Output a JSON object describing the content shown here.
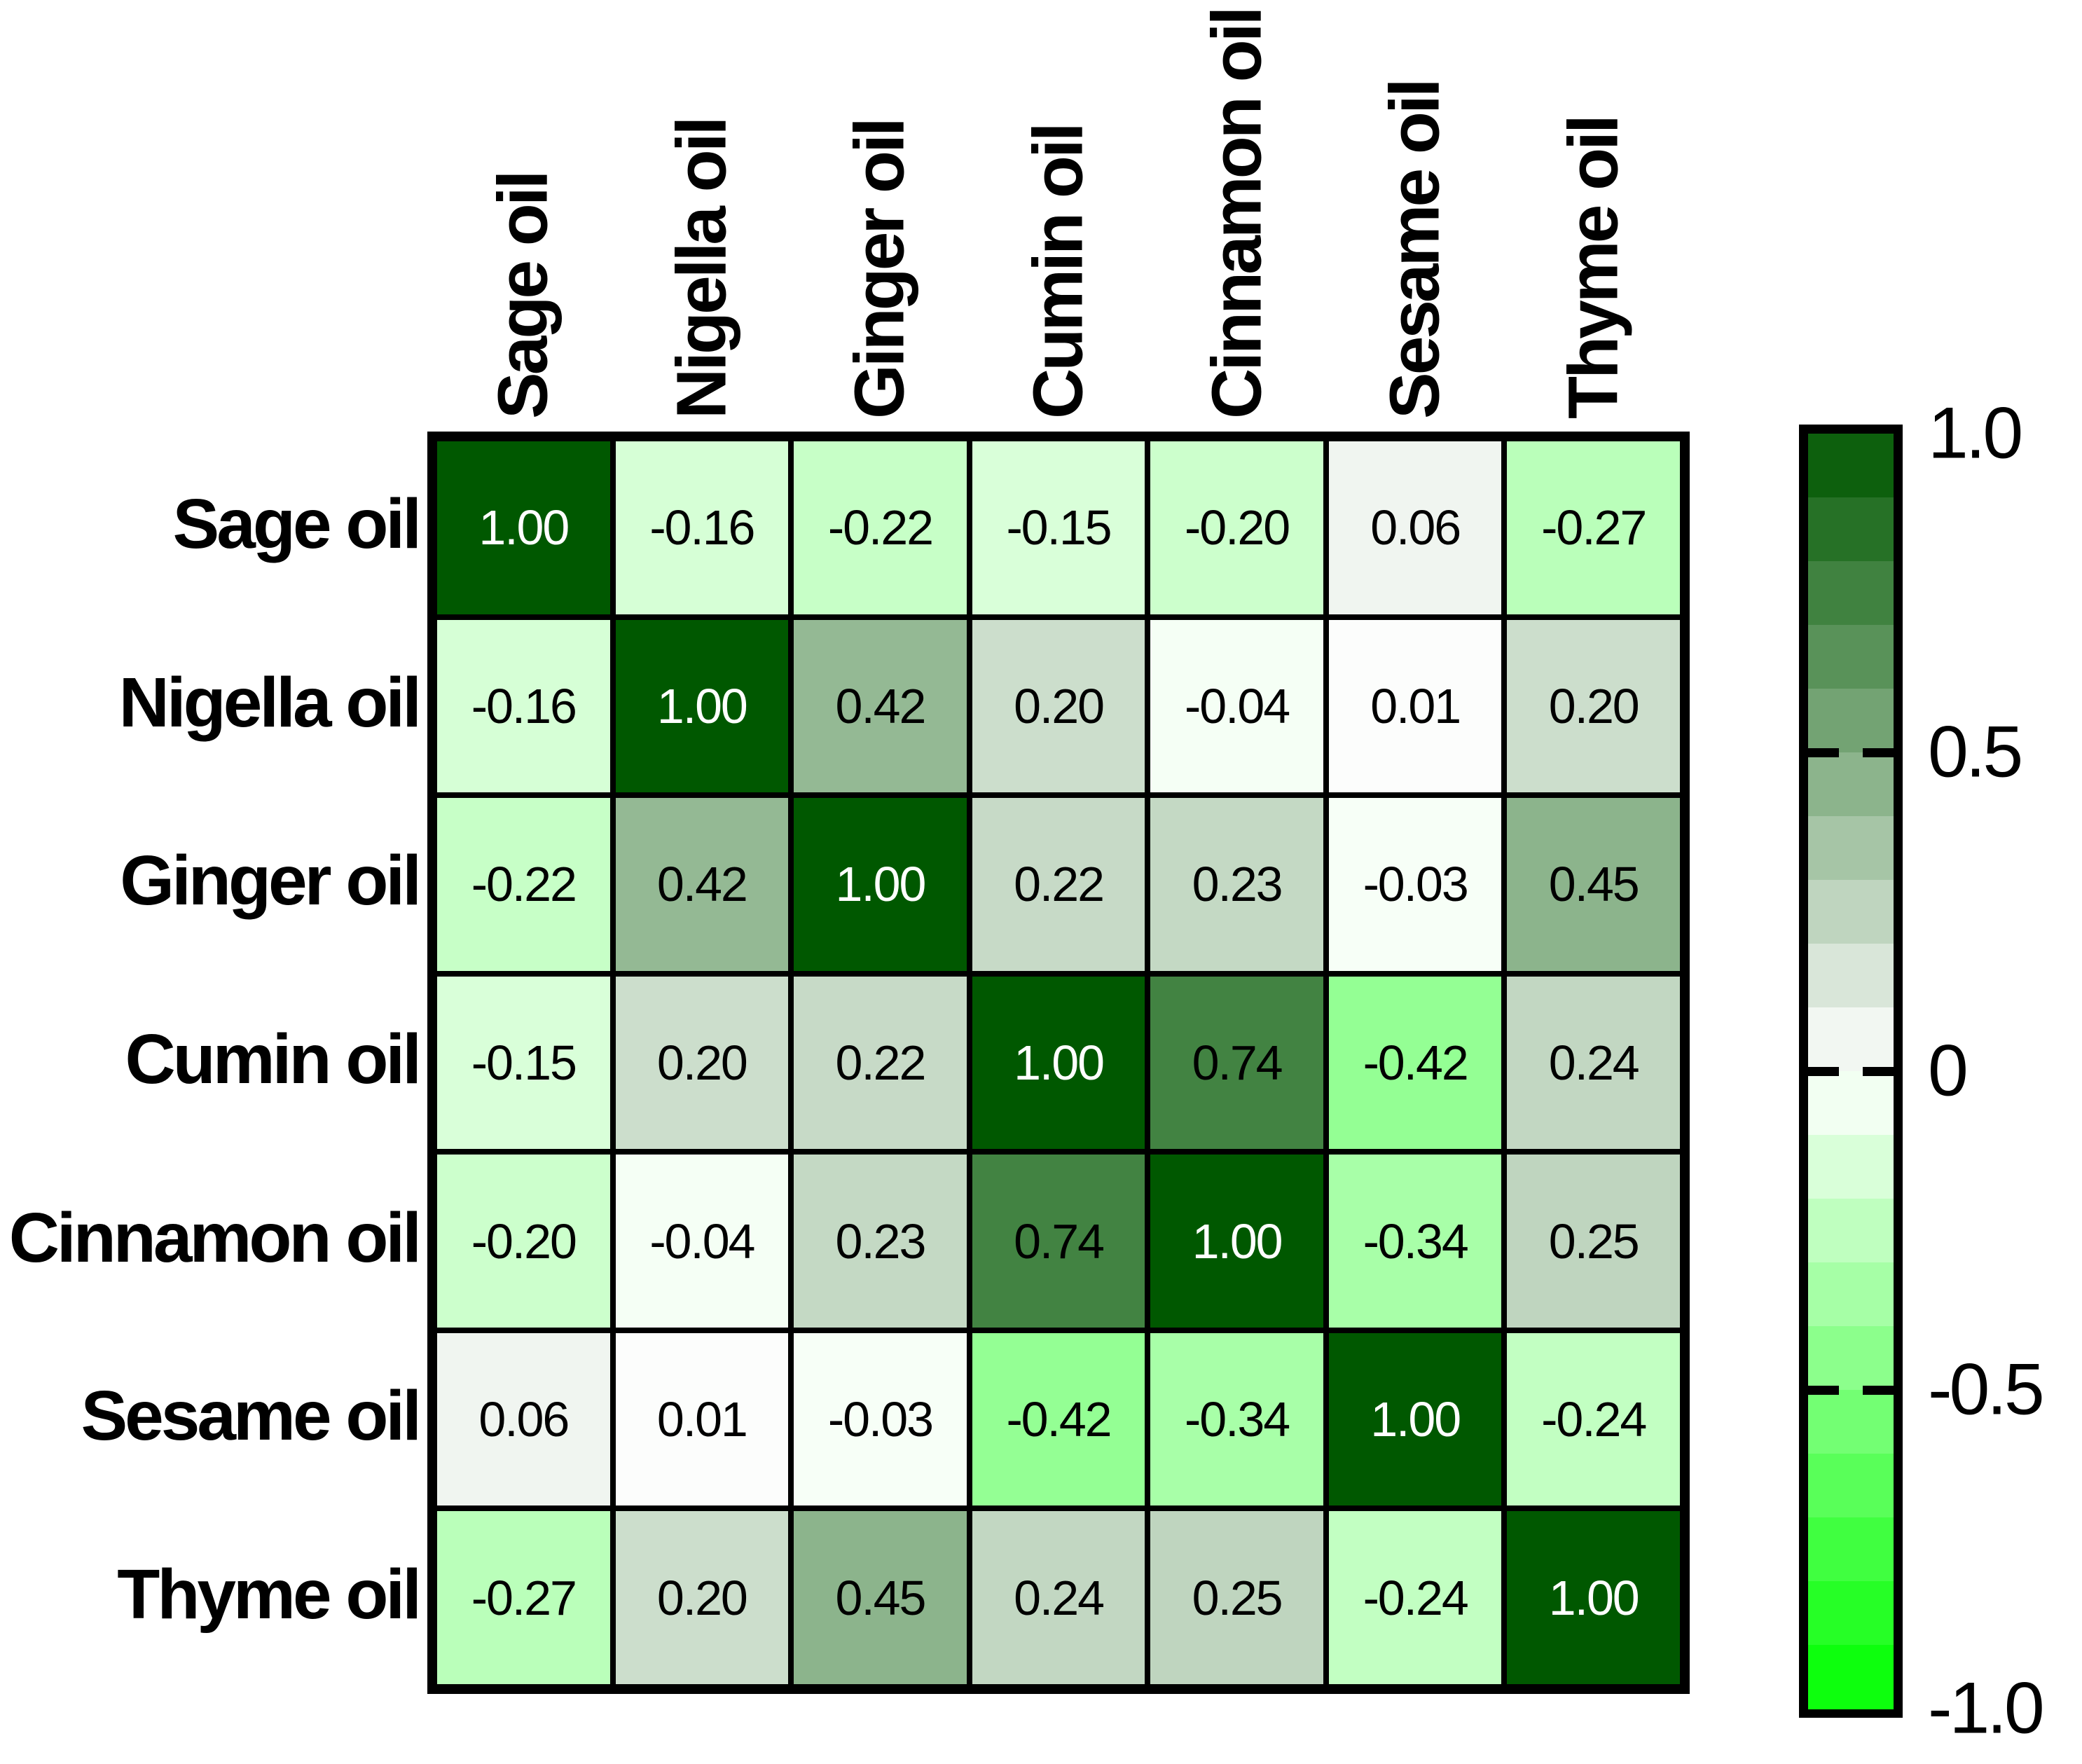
{
  "chart_data": {
    "type": "heatmap",
    "title": "",
    "categories": [
      "Sage oil",
      "Nigella oil",
      "Ginger oil",
      "Cumin oil",
      "Cinnamon oil",
      "Sesame oil",
      "Thyme oil"
    ],
    "matrix": [
      [
        1.0,
        -0.16,
        -0.22,
        -0.15,
        -0.2,
        0.06,
        -0.27
      ],
      [
        -0.16,
        1.0,
        0.42,
        0.2,
        -0.04,
        0.01,
        0.2
      ],
      [
        -0.22,
        0.42,
        1.0,
        0.22,
        0.23,
        -0.03,
        0.45
      ],
      [
        -0.15,
        0.2,
        0.22,
        1.0,
        0.74,
        -0.42,
        0.24
      ],
      [
        -0.2,
        -0.04,
        0.23,
        0.74,
        1.0,
        -0.34,
        0.25
      ],
      [
        0.06,
        0.01,
        -0.03,
        -0.42,
        -0.34,
        1.0,
        -0.24
      ],
      [
        -0.27,
        0.2,
        0.45,
        0.24,
        0.25,
        -0.24,
        1.0
      ]
    ],
    "value_decimals": 2,
    "colormap": {
      "negative_end": "#00FF00",
      "zero": "#FFFFFF",
      "positive_end": "#005800",
      "steps": 20,
      "range": [
        -1,
        1
      ]
    },
    "colorbar": {
      "tick_values": [
        1.0,
        0.5,
        0,
        -0.5,
        -1.0
      ],
      "tick_labels": [
        "1.0",
        "0.5",
        "0",
        "-0.5",
        "-1.0"
      ],
      "notch_values": [
        0.5,
        0,
        -0.5
      ]
    },
    "cell_text_color": "#000000",
    "diagonal_text_color": "#FFFFFF",
    "grid_color": "#000000",
    "legend_position": "right",
    "grid": "on"
  }
}
